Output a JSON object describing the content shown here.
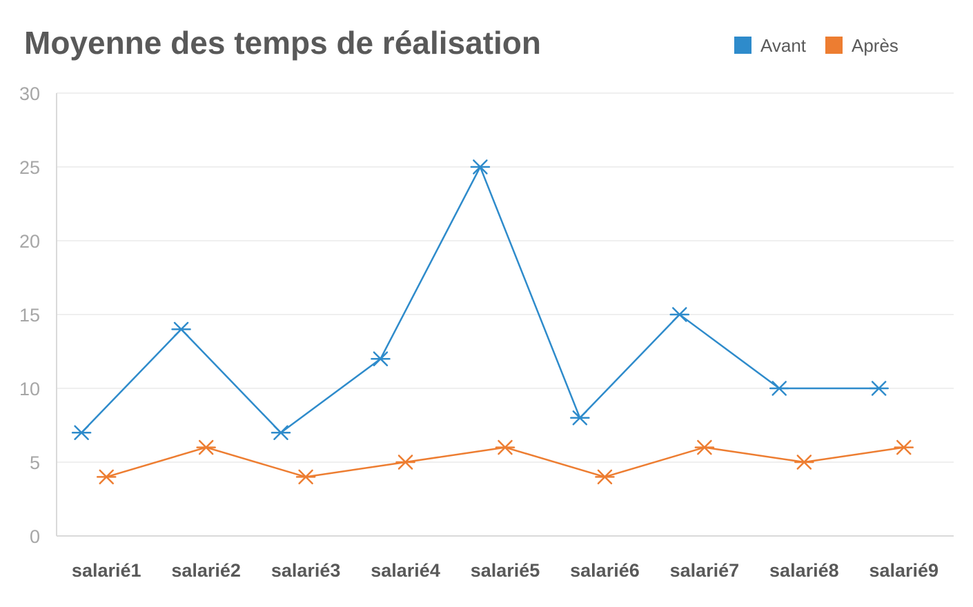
{
  "chart_data": {
    "type": "line",
    "title": "Moyenne des temps de réalisation",
    "categories": [
      "salarié1",
      "salarié2",
      "salarié3",
      "salarié4",
      "salarié5",
      "salarié6",
      "salarié7",
      "salarié8",
      "salarié9"
    ],
    "series": [
      {
        "name": "Avant",
        "color": "#2E8BCB",
        "values": [
          7,
          14,
          7,
          12,
          25,
          8,
          15,
          10,
          10
        ]
      },
      {
        "name": "Après",
        "color": "#ED7D31",
        "values": [
          4,
          6,
          4,
          5,
          6,
          4,
          6,
          5,
          6
        ]
      }
    ],
    "ylim": [
      0,
      30
    ],
    "yticks": [
      0,
      5,
      10,
      15,
      20,
      25,
      30
    ],
    "grid": true,
    "legend_position": "top-right",
    "marker": "asterisk"
  }
}
